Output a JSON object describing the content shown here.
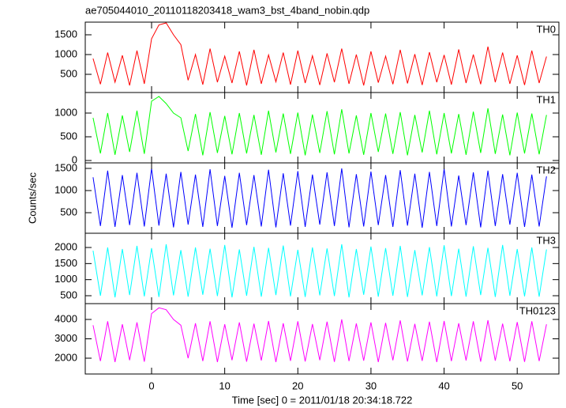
{
  "chart_data": [
    {
      "type": "line",
      "title": "ae705044010_20110118203418_wam3_bst_4band_nobin.qdp",
      "xlim": [
        -9.07,
        55.7
      ],
      "xticks": [
        0,
        10,
        20,
        30,
        40,
        50
      ],
      "x": [
        -8,
        -7,
        -6,
        -5,
        -4,
        -3,
        -2,
        -1,
        0,
        1,
        2,
        3,
        4,
        5,
        6,
        7,
        8,
        9,
        10,
        11,
        12,
        13,
        14,
        15,
        16,
        17,
        18,
        19,
        20,
        21,
        22,
        23,
        24,
        25,
        26,
        27,
        28,
        29,
        30,
        31,
        32,
        33,
        34,
        35,
        36,
        37,
        38,
        39,
        40,
        41,
        42,
        43,
        44,
        45,
        46,
        47,
        48,
        49,
        50,
        51,
        52,
        53,
        54
      ],
      "ylim": [
        40,
        1820
      ],
      "yticks": [
        500,
        1000,
        1500
      ],
      "series": [
        {
          "name": "TH0",
          "color": "#ff0000",
          "values": [
            900,
            250,
            1050,
            300,
            980,
            220,
            1100,
            260,
            1400,
            1750,
            1800,
            1500,
            1250,
            350,
            1000,
            240,
            1150,
            300,
            960,
            280,
            1080,
            220,
            1120,
            260,
            990,
            310,
            1050,
            240,
            1100,
            280,
            970,
            230,
            1030,
            300,
            1150,
            260,
            1000,
            220,
            1080,
            290,
            960,
            250,
            1120,
            270,
            1010,
            230,
            1060,
            300,
            990,
            240,
            1130,
            280,
            1000,
            250,
            1200,
            300,
            1050,
            260,
            980,
            230,
            1100,
            280,
            950
          ]
        }
      ]
    },
    {
      "type": "line",
      "xlim": [
        -9.07,
        55.7
      ],
      "xticks": [
        0,
        10,
        20,
        30,
        40,
        50
      ],
      "x": [
        -8,
        -7,
        -6,
        -5,
        -4,
        -3,
        -2,
        -1,
        0,
        1,
        2,
        3,
        4,
        5,
        6,
        7,
        8,
        9,
        10,
        11,
        12,
        13,
        14,
        15,
        16,
        17,
        18,
        19,
        20,
        21,
        22,
        23,
        24,
        25,
        26,
        27,
        28,
        29,
        30,
        31,
        32,
        33,
        34,
        35,
        36,
        37,
        38,
        39,
        40,
        41,
        42,
        43,
        44,
        45,
        46,
        47,
        48,
        49,
        50,
        51,
        52,
        53,
        54
      ],
      "ylim": [
        -50,
        1433
      ],
      "yticks": [
        0,
        500,
        1000
      ],
      "series": [
        {
          "name": "TH1",
          "color": "#00ff00",
          "values": [
            900,
            150,
            1000,
            120,
            950,
            180,
            1050,
            140,
            1250,
            1350,
            1200,
            1000,
            900,
            200,
            980,
            110,
            1020,
            160,
            940,
            130,
            1000,
            150,
            960,
            120,
            1050,
            170,
            990,
            140,
            1010,
            110,
            970,
            160,
            1040,
            130,
            1080,
            150,
            950,
            120,
            1000,
            180,
            990,
            140,
            1020,
            110,
            960,
            170,
            1050,
            130,
            1000,
            150,
            980,
            120,
            1030,
            160,
            1100,
            140,
            970,
            110,
            1010,
            150,
            990,
            130,
            960
          ]
        }
      ]
    },
    {
      "type": "line",
      "ylabel": "Counts/sec",
      "xlim": [
        -9.07,
        55.7
      ],
      "xticks": [
        0,
        10,
        20,
        30,
        40,
        50
      ],
      "x": [
        -8,
        -7,
        -6,
        -5,
        -4,
        -3,
        -2,
        -1,
        0,
        1,
        2,
        3,
        4,
        5,
        6,
        7,
        8,
        9,
        10,
        11,
        12,
        13,
        14,
        15,
        16,
        17,
        18,
        19,
        20,
        21,
        22,
        23,
        24,
        25,
        26,
        27,
        28,
        29,
        30,
        31,
        32,
        33,
        34,
        35,
        36,
        37,
        38,
        39,
        40,
        41,
        42,
        43,
        44,
        45,
        46,
        47,
        48,
        49,
        50,
        51,
        52,
        53,
        54
      ],
      "ylim": [
        36,
        1625
      ],
      "yticks": [
        500,
        1000,
        1500
      ],
      "series": [
        {
          "name": "TH2",
          "color": "#0000ff",
          "values": [
            1300,
            200,
            1450,
            180,
            1350,
            220,
            1400,
            190,
            1500,
            210,
            1380,
            170,
            1420,
            230,
            1360,
            180,
            1480,
            200,
            1330,
            160,
            1400,
            220,
            1350,
            190,
            1470,
            170,
            1390,
            210,
            1440,
            180,
            1360,
            230,
            1410,
            200,
            1500,
            170,
            1370,
            190,
            1430,
            220,
            1350,
            180,
            1460,
            210,
            1380,
            160,
            1420,
            200,
            1490,
            190,
            1340,
            220,
            1410,
            170,
            1450,
            200,
            1370,
            230,
            1400,
            180,
            1360,
            190,
            1320
          ]
        }
      ]
    },
    {
      "type": "line",
      "xlim": [
        -9.07,
        55.7
      ],
      "xticks": [
        0,
        10,
        20,
        30,
        40,
        50
      ],
      "x": [
        -8,
        -7,
        -6,
        -5,
        -4,
        -3,
        -2,
        -1,
        0,
        1,
        2,
        3,
        4,
        5,
        6,
        7,
        8,
        9,
        10,
        11,
        12,
        13,
        14,
        15,
        16,
        17,
        18,
        19,
        20,
        21,
        22,
        23,
        24,
        25,
        26,
        27,
        28,
        29,
        30,
        31,
        32,
        33,
        34,
        35,
        36,
        37,
        38,
        39,
        40,
        41,
        42,
        43,
        44,
        45,
        46,
        47,
        48,
        49,
        50,
        51,
        52,
        53,
        54
      ],
      "ylim": [
        254,
        2443
      ],
      "yticks": [
        500,
        1000,
        1500,
        2000
      ],
      "series": [
        {
          "name": "TH3",
          "color": "#00ffff",
          "values": [
            1900,
            500,
            2000,
            450,
            1950,
            520,
            2050,
            480,
            1980,
            460,
            2100,
            510,
            1920,
            470,
            2000,
            530,
            1960,
            490,
            2080,
            450,
            1940,
            500,
            2020,
            470,
            1990,
            520,
            2060,
            480,
            1930,
            460,
            2000,
            510,
            1970,
            490,
            2100,
            450,
            1950,
            530,
            2030,
            470,
            1980,
            500,
            2050,
            460,
            1920,
            510,
            2010,
            480,
            2070,
            490,
            1960,
            470,
            2040,
            520,
            1990,
            460,
            2080,
            500,
            1950,
            480,
            2000,
            470,
            1940
          ]
        }
      ]
    },
    {
      "type": "line",
      "xlabel": "Time [sec] 0 = 2011/01/18 20:34:18.722",
      "xlim": [
        -9.07,
        55.7
      ],
      "xticks": [
        0,
        10,
        20,
        30,
        40,
        50
      ],
      "x": [
        -8,
        -7,
        -6,
        -5,
        -4,
        -3,
        -2,
        -1,
        0,
        1,
        2,
        3,
        4,
        5,
        6,
        7,
        8,
        9,
        10,
        11,
        12,
        13,
        14,
        15,
        16,
        17,
        18,
        19,
        20,
        21,
        22,
        23,
        24,
        25,
        26,
        27,
        28,
        29,
        30,
        31,
        32,
        33,
        34,
        35,
        36,
        37,
        38,
        39,
        40,
        41,
        42,
        43,
        44,
        45,
        46,
        47,
        48,
        49,
        50,
        51,
        52,
        53,
        54
      ],
      "ylim": [
        1184,
        4816
      ],
      "yticks": [
        2000,
        3000,
        4000
      ],
      "series": [
        {
          "name": "TH0123",
          "color": "#ff00ff",
          "values": [
            3700,
            1850,
            3900,
            1800,
            3750,
            1900,
            3850,
            1820,
            4300,
            4600,
            4500,
            4000,
            3700,
            2000,
            3800,
            1850,
            3900,
            1800,
            3750,
            1900,
            3850,
            1820,
            3780,
            1880,
            3920,
            1800,
            3800,
            1860,
            3900,
            1830,
            3760,
            1900,
            3880,
            1810,
            4000,
            1850,
            3790,
            1870,
            3850,
            1800,
            3820,
            1890,
            3950,
            1830,
            3770,
            1860,
            3880,
            1800,
            3920,
            1850,
            3800,
            1880,
            3900,
            1820,
            3960,
            1870,
            3780,
            1840,
            3860,
            1810,
            3900,
            1850,
            3750
          ]
        }
      ]
    }
  ]
}
